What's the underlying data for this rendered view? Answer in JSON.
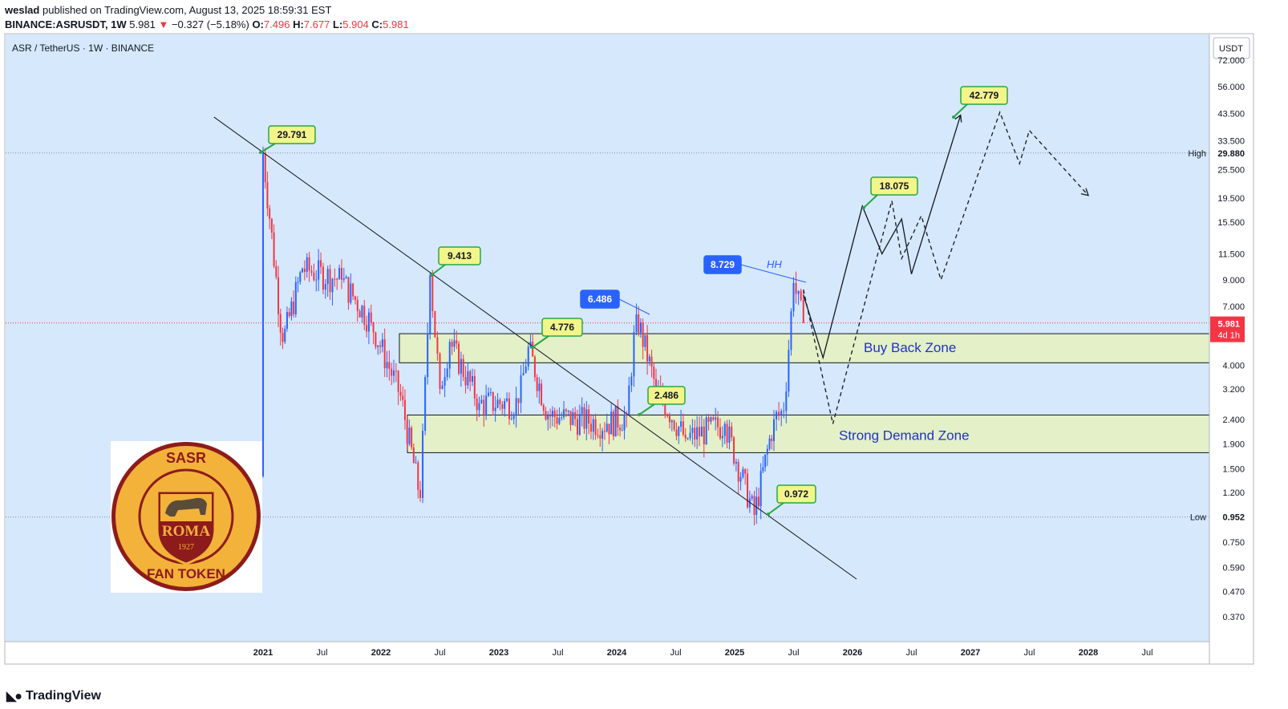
{
  "header": {
    "author": "weslad",
    "published": "published on TradingView.com, August 13, 2025 18:59:31 EST",
    "symbol": "BINANCE:ASRUSDT, 1W",
    "last": "5.981",
    "change": "−0.327 (−5.18%)",
    "o_label": "O:",
    "o": "7.496",
    "h_label": "H:",
    "h": "7.677",
    "l_label": "L:",
    "l": "5.904",
    "c_label": "C:",
    "c": "5.981"
  },
  "chart_title": "ASR / TetherUS · 1W · BINANCE",
  "currency_label": "USDT",
  "footer_brand": "TradingView",
  "logo": {
    "top_text": "SASR",
    "center_text": "ROMA",
    "year": "1927",
    "bottom_text": "FAN TOKEN"
  },
  "colors": {
    "background": "#d6e8fb",
    "up_candle": "#2962ff",
    "down_candle": "#f23645",
    "zone_fill": "#e3f0c8",
    "callout_green": "#f2f58a",
    "callout_blue": "#2962ff",
    "zone_text": "#2231c9"
  },
  "chart_data": {
    "type": "candlestick",
    "title": "ASR / TetherUS · 1W · BINANCE",
    "y_scale": "log",
    "ylim": [
      0.32,
      80
    ],
    "y_ticks": [
      "72.000",
      "56.000",
      "43.500",
      "33.500",
      "25.500",
      "19.500",
      "15.500",
      "11.500",
      "9.000",
      "7.000",
      "4.000",
      "3.200",
      "2.400",
      "1.900",
      "1.500",
      "1.200",
      "0.750",
      "0.590",
      "0.470",
      "0.370"
    ],
    "x_ticks": [
      "2021",
      "Jul",
      "2022",
      "Jul",
      "2023",
      "Jul",
      "2024",
      "Jul",
      "2025",
      "Jul",
      "2026",
      "Jul",
      "2027",
      "Jul",
      "2028",
      "Jul"
    ],
    "high_label": "High",
    "high_value": "29.880",
    "low_label": "Low",
    "low_value": "0.952",
    "price_tag": "5.981",
    "countdown": "4d 1h",
    "price_path": [
      {
        "t": "2021-01",
        "v": 1.4
      },
      {
        "t": "2021-01",
        "v": 29.791
      },
      {
        "t": "2021-03",
        "v": 5.0
      },
      {
        "t": "2021-05",
        "v": 10.0
      },
      {
        "t": "2021-09",
        "v": 9.0
      },
      {
        "t": "2021-12",
        "v": 6.0
      },
      {
        "t": "2022-03",
        "v": 3.0
      },
      {
        "t": "2022-05",
        "v": 1.14
      },
      {
        "t": "2022-06",
        "v": 9.413
      },
      {
        "t": "2022-07",
        "v": 3.2
      },
      {
        "t": "2022-08",
        "v": 5.0
      },
      {
        "t": "2022-11",
        "v": 2.8
      },
      {
        "t": "2023-03",
        "v": 2.8
      },
      {
        "t": "2023-04",
        "v": 4.776
      },
      {
        "t": "2023-06",
        "v": 2.5
      },
      {
        "t": "2023-12",
        "v": 2.3
      },
      {
        "t": "2024-02",
        "v": 2.486
      },
      {
        "t": "2024-03",
        "v": 6.486
      },
      {
        "t": "2024-05",
        "v": 3.2
      },
      {
        "t": "2024-08",
        "v": 2.0
      },
      {
        "t": "2024-12",
        "v": 2.3
      },
      {
        "t": "2025-03",
        "v": 0.972
      },
      {
        "t": "2025-05",
        "v": 2.4
      },
      {
        "t": "2025-06",
        "v": 2.6
      },
      {
        "t": "2025-07",
        "v": 8.729
      },
      {
        "t": "2025-08",
        "v": 5.981
      }
    ],
    "callouts": [
      {
        "text": "29.791",
        "style": "green"
      },
      {
        "text": "9.413",
        "style": "green"
      },
      {
        "text": "4.776",
        "style": "green"
      },
      {
        "text": "2.486",
        "style": "green"
      },
      {
        "text": "0.972",
        "style": "green"
      },
      {
        "text": "18.075",
        "style": "green"
      },
      {
        "text": "42.779",
        "style": "green"
      },
      {
        "text": "6.486",
        "style": "blue"
      },
      {
        "text": "8.729",
        "style": "blue"
      }
    ],
    "zones": [
      {
        "name": "Buy Back Zone",
        "low": 4.1,
        "high": 5.4
      },
      {
        "name": "Strong Demand Zone",
        "low": 1.75,
        "high": 2.5
      }
    ],
    "annotation": "HH",
    "projection_solid": [
      {
        "t": "2025-08",
        "v": 7.8
      },
      {
        "t": "2025-10",
        "v": 4.3
      },
      {
        "t": "2026-02",
        "v": 18.075
      },
      {
        "t": "2026-04",
        "v": 11.5
      },
      {
        "t": "2026-06",
        "v": 16.0
      },
      {
        "t": "2026-07",
        "v": 9.5
      },
      {
        "t": "2026-12",
        "v": 42.779
      }
    ],
    "projection_dashed": [
      {
        "t": "2025-08",
        "v": 8.2
      },
      {
        "t": "2025-11",
        "v": 2.3
      },
      {
        "t": "2026-05",
        "v": 19.0
      },
      {
        "t": "2026-06",
        "v": 11.0
      },
      {
        "t": "2026-08",
        "v": 16.5
      },
      {
        "t": "2026-10",
        "v": 9.0
      },
      {
        "t": "2027-04",
        "v": 44.0
      },
      {
        "t": "2027-06",
        "v": 27.0
      },
      {
        "t": "2027-07",
        "v": 37.0
      },
      {
        "t": "2028-01",
        "v": 20.0
      }
    ],
    "trendline": [
      {
        "t": "2020-08",
        "v": 42.0
      },
      {
        "t": "2025-10",
        "v": 0.54
      }
    ]
  }
}
